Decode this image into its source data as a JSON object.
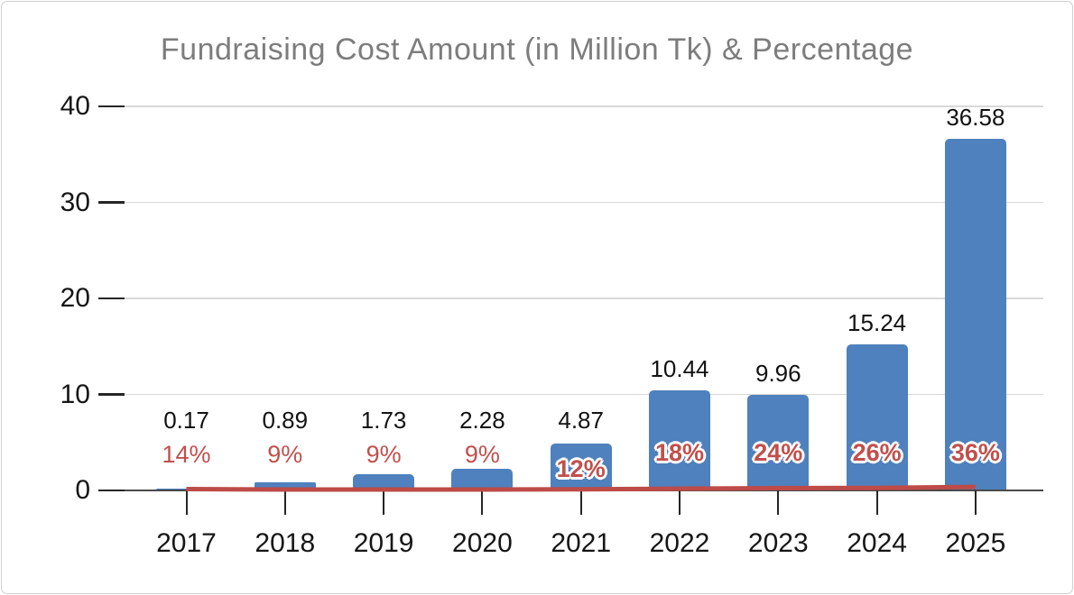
{
  "chart_data": {
    "type": "bar+line combo",
    "title": "Fundraising Cost Amount (in Million Tk) & Percentage",
    "categories": [
      "2017",
      "2018",
      "2019",
      "2020",
      "2021",
      "2022",
      "2023",
      "2024",
      "2025"
    ],
    "series": [
      {
        "name": "Fundraising Cost Amount (in Million Tk)",
        "type": "bar",
        "values": [
          0.17,
          0.89,
          1.73,
          2.28,
          4.87,
          10.44,
          9.96,
          15.24,
          36.58
        ],
        "data_labels": [
          "0.17",
          "0.89",
          "1.73",
          "2.28",
          "4.87",
          "10.44",
          "9.96",
          "15.24",
          "36.58"
        ]
      },
      {
        "name": "Percentage",
        "type": "line",
        "values_percent": [
          14,
          9,
          9,
          9,
          12,
          18,
          24,
          26,
          36
        ],
        "data_labels": [
          "14%",
          "9%",
          "9%",
          "9%",
          "12%",
          "18%",
          "24%",
          "26%",
          "36%"
        ],
        "note": "plotted near zero on the primary axis (percent/100)"
      }
    ],
    "y_axis": {
      "min": 0,
      "max": 40,
      "tick_interval": 10,
      "ticks": [
        0,
        10,
        20,
        30,
        40
      ]
    },
    "x_axis": {
      "tick_marks": "at category centers"
    },
    "grid": true,
    "legend": "none",
    "colors": {
      "bar": "#4E81BD",
      "line": "#BE4B48",
      "pct_label": "#C0504D",
      "value_label": "#121212",
      "title": "#7D7D7D",
      "grid": "#D9D9D9",
      "axis": "#4A4A4A",
      "tick": "#262626",
      "frame_border": "#CFCFCF",
      "background": "#FFFFFF"
    }
  }
}
